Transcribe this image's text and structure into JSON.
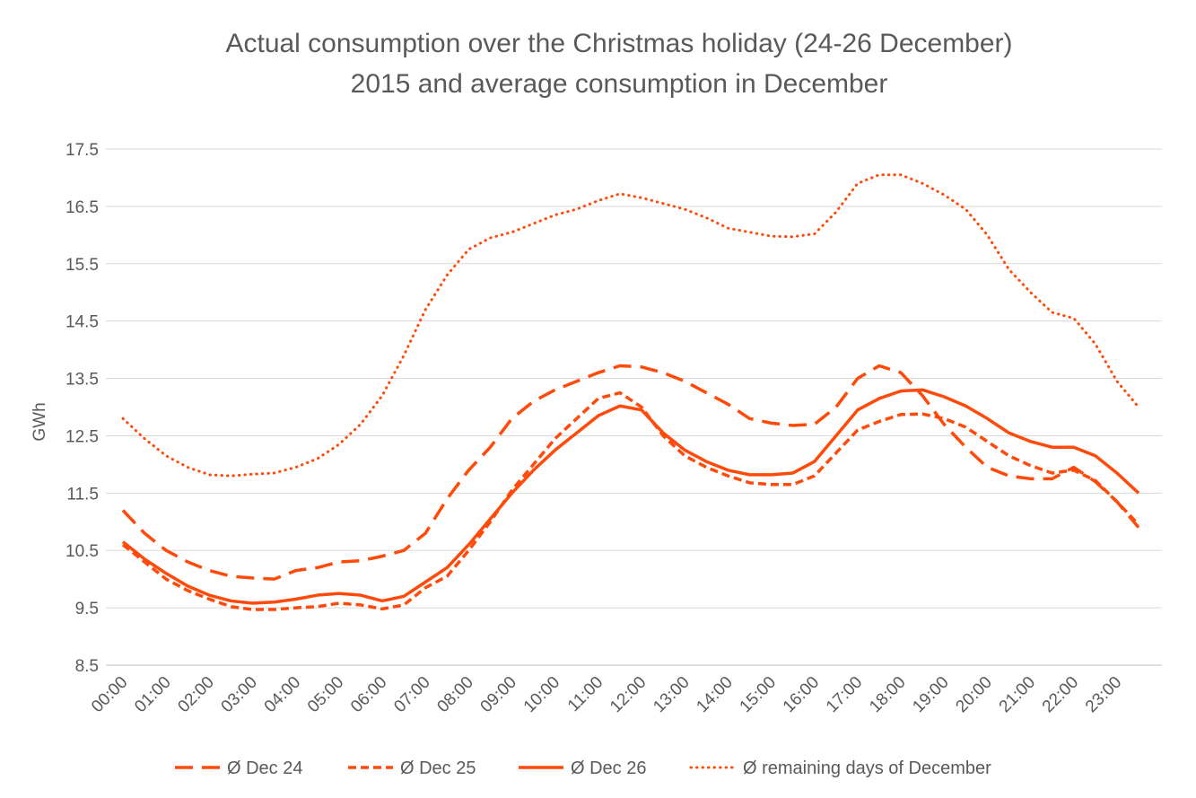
{
  "chart_data": {
    "type": "line",
    "title": [
      "Actual consumption over the Christmas holiday (24-26 December)",
      "2015 and average consumption in December"
    ],
    "y_label": "GWh",
    "categories": [
      "00:00",
      null,
      "01:00",
      null,
      "02:00",
      null,
      "03:00",
      null,
      "04:00",
      null,
      "05:00",
      null,
      "06:00",
      null,
      "07:00",
      null,
      "08:00",
      null,
      "09:00",
      null,
      "10:00",
      null,
      "11:00",
      null,
      "12:00",
      null,
      "13:00",
      null,
      "14:00",
      null,
      "15:00",
      null,
      "16:00",
      null,
      "17:00",
      null,
      "18:00",
      null,
      "19:00",
      null,
      "20:00",
      null,
      "21:00",
      null,
      "22:00",
      null,
      "23:00",
      null
    ],
    "ylim": [
      8.5,
      17.5
    ],
    "yticks": [
      8.5,
      9.5,
      10.5,
      11.5,
      12.5,
      13.5,
      14.5,
      15.5,
      16.5,
      17.5
    ],
    "grid": true,
    "legend": "bottom",
    "series": [
      {
        "name": "Ø Dec 24",
        "color": "#ff4a0a",
        "style": "long-dash",
        "values": [
          11.2,
          10.8,
          10.5,
          10.3,
          10.15,
          10.05,
          10.02,
          10.0,
          10.15,
          10.2,
          10.3,
          10.32,
          10.4,
          10.5,
          10.8,
          11.4,
          11.9,
          12.3,
          12.8,
          13.1,
          13.3,
          13.45,
          13.6,
          13.72,
          13.7,
          13.6,
          13.45,
          13.25,
          13.05,
          12.8,
          12.72,
          12.68,
          12.7,
          13.0,
          13.5,
          13.72,
          13.6,
          13.2,
          12.7,
          12.3,
          11.95,
          11.8,
          11.75,
          11.75,
          11.95,
          11.7,
          11.35,
          10.9
        ]
      },
      {
        "name": "Ø Dec 25",
        "color": "#ff4a0a",
        "style": "short-dash",
        "values": [
          10.6,
          10.3,
          10.0,
          9.8,
          9.65,
          9.52,
          9.47,
          9.47,
          9.5,
          9.52,
          9.58,
          9.55,
          9.48,
          9.55,
          9.85,
          10.05,
          10.5,
          11.0,
          11.55,
          12.0,
          12.45,
          12.8,
          13.15,
          13.25,
          13.0,
          12.5,
          12.15,
          11.95,
          11.8,
          11.68,
          11.65,
          11.65,
          11.8,
          12.2,
          12.6,
          12.75,
          12.87,
          12.88,
          12.8,
          12.65,
          12.4,
          12.15,
          11.98,
          11.85,
          11.9,
          11.72,
          11.35,
          10.95
        ]
      },
      {
        "name": "Ø Dec 26",
        "color": "#ff4a0a",
        "style": "solid",
        "values": [
          10.65,
          10.35,
          10.1,
          9.88,
          9.72,
          9.62,
          9.58,
          9.6,
          9.65,
          9.72,
          9.75,
          9.72,
          9.62,
          9.7,
          9.95,
          10.2,
          10.6,
          11.05,
          11.5,
          11.9,
          12.25,
          12.55,
          12.85,
          13.02,
          12.95,
          12.55,
          12.25,
          12.05,
          11.9,
          11.82,
          11.82,
          11.85,
          12.05,
          12.5,
          12.95,
          13.15,
          13.28,
          13.3,
          13.18,
          13.02,
          12.8,
          12.55,
          12.4,
          12.3,
          12.3,
          12.15,
          11.85,
          11.5
        ]
      },
      {
        "name": "Ø remaining days of December",
        "color": "#ff4a0a",
        "style": "dotted",
        "values": [
          12.8,
          12.45,
          12.15,
          11.95,
          11.82,
          11.8,
          11.83,
          11.85,
          11.95,
          12.1,
          12.35,
          12.7,
          13.2,
          13.9,
          14.7,
          15.3,
          15.75,
          15.95,
          16.05,
          16.2,
          16.35,
          16.45,
          16.6,
          16.72,
          16.65,
          16.55,
          16.45,
          16.3,
          16.12,
          16.05,
          15.98,
          15.97,
          16.02,
          16.4,
          16.9,
          17.05,
          17.05,
          16.9,
          16.7,
          16.45,
          16.0,
          15.4,
          15.0,
          14.65,
          14.55,
          14.1,
          13.45,
          13.0
        ]
      }
    ]
  }
}
